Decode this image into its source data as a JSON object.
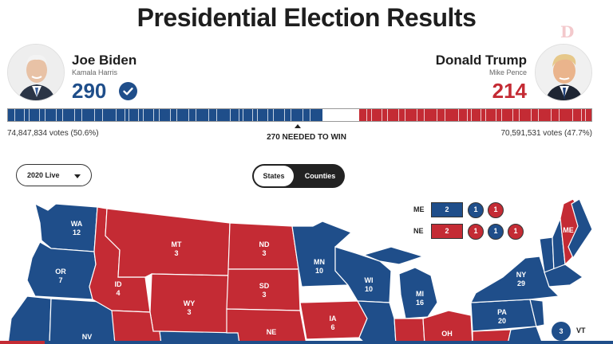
{
  "page": {
    "title": "Presidential Election Results"
  },
  "colors": {
    "dem": "#1f4e8a",
    "rep": "#c42b34"
  },
  "candidates": {
    "dem": {
      "name": "Joe Biden",
      "running_mate": "Kamala Harris",
      "electoral_votes": "290",
      "winner_icon": "check-circle-icon",
      "popular": "74,847,834 votes (50.6%)"
    },
    "rep": {
      "name": "Donald Trump",
      "running_mate": "Mike Pence",
      "electoral_votes": "214",
      "popular": "70,591,531 votes (47.7%)"
    }
  },
  "bar": {
    "needed_label": "270 NEEDED TO WIN",
    "total": 538,
    "dem_ev": 290,
    "rep_ev": 214
  },
  "controls": {
    "year_select": {
      "selected": "2020 Live"
    },
    "view_toggle": {
      "options": [
        "States",
        "Counties"
      ],
      "selected": "States"
    }
  },
  "splits": {
    "me": {
      "name": "ME",
      "statewide": "2",
      "districts": [
        "1",
        "1"
      ],
      "colors": [
        "dem",
        "dem",
        "rep"
      ]
    },
    "ne": {
      "name": "NE",
      "statewide": "2",
      "districts": [
        "1",
        "1",
        "1"
      ],
      "colors": [
        "rep",
        "rep",
        "dem",
        "rep"
      ]
    }
  },
  "states": {
    "wa": {
      "abbr": "WA",
      "ev": "12"
    },
    "or": {
      "abbr": "OR",
      "ev": "7"
    },
    "nv": {
      "abbr": "NV"
    },
    "id": {
      "abbr": "ID",
      "ev": "4"
    },
    "mt": {
      "abbr": "MT",
      "ev": "3"
    },
    "wy": {
      "abbr": "WY",
      "ev": "3"
    },
    "nd": {
      "abbr": "ND",
      "ev": "3"
    },
    "sd": {
      "abbr": "SD",
      "ev": "3"
    },
    "ne": {
      "abbr": "NE"
    },
    "mn": {
      "abbr": "MN",
      "ev": "10"
    },
    "ia": {
      "abbr": "IA",
      "ev": "6"
    },
    "wi": {
      "abbr": "WI",
      "ev": "10"
    },
    "mi": {
      "abbr": "MI",
      "ev": "16"
    },
    "oh": {
      "abbr": "OH"
    },
    "ny": {
      "abbr": "NY",
      "ev": "29"
    },
    "pa": {
      "abbr": "PA",
      "ev": "20"
    },
    "me": {
      "abbr": "ME"
    },
    "vt": {
      "abbr": "VT",
      "ev": "3"
    }
  }
}
